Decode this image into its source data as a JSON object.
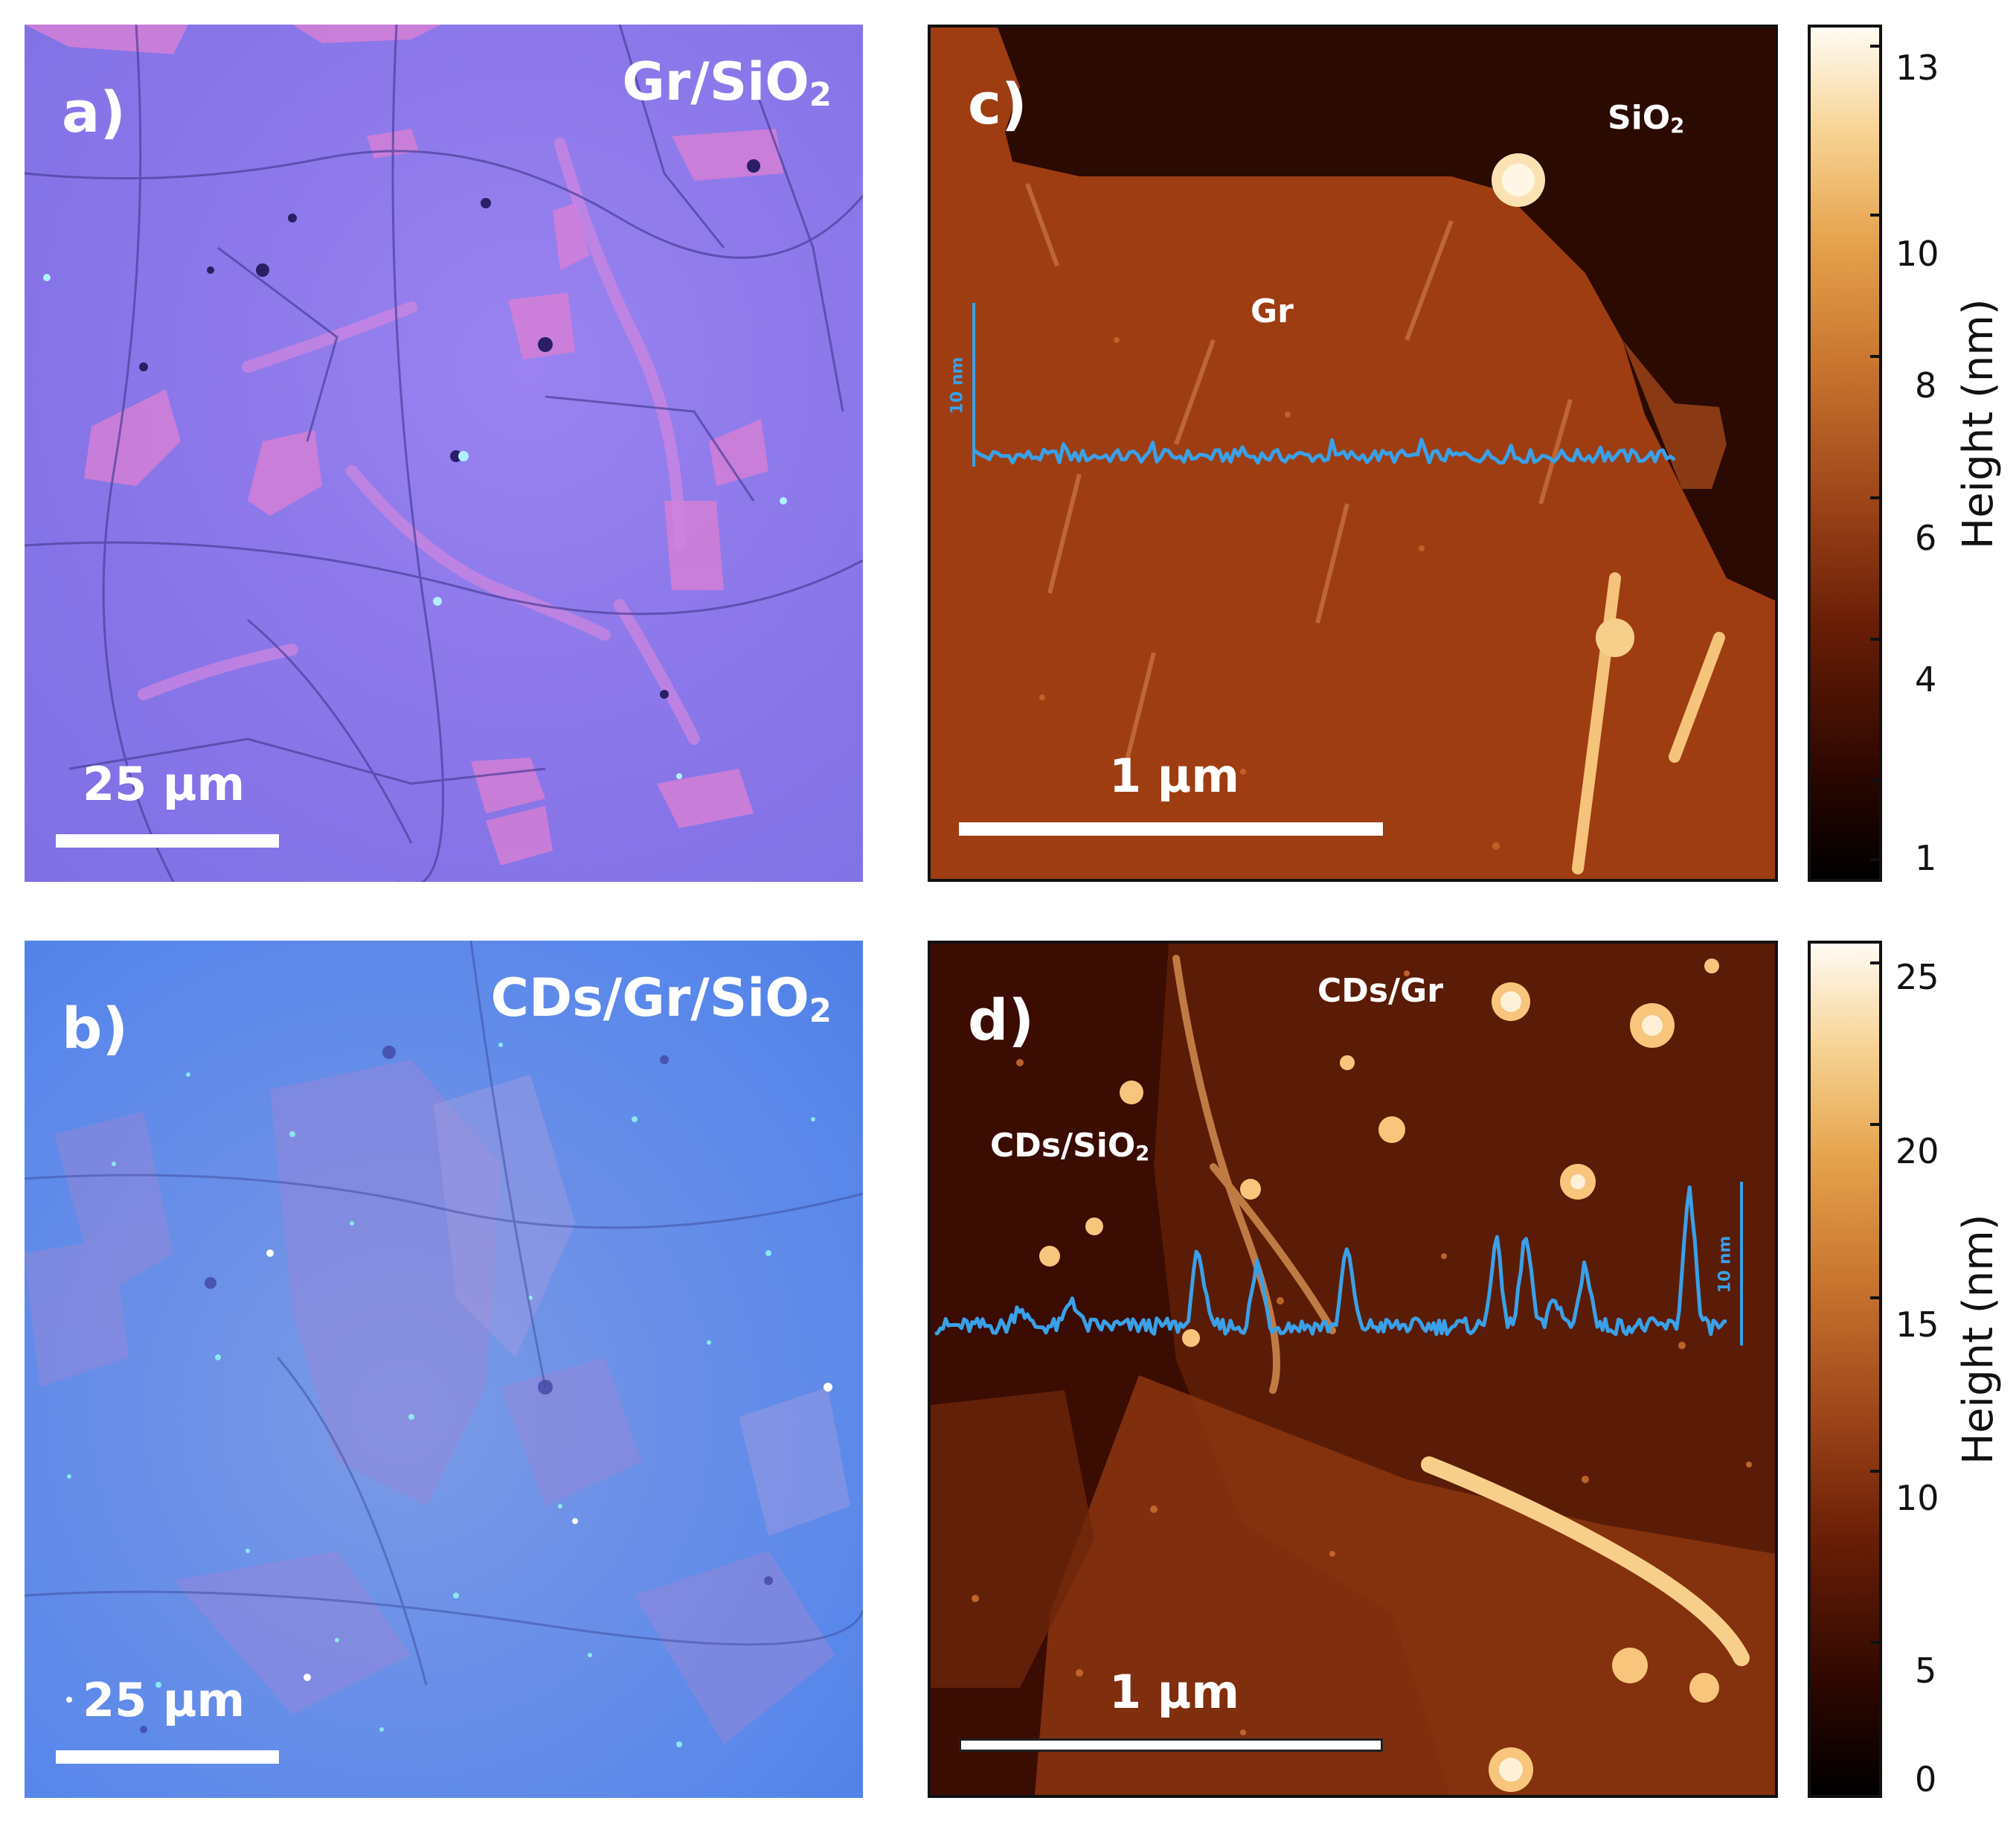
{
  "panels": {
    "a": {
      "label": "a)",
      "overlay": "Gr/SiO",
      "overlay_sub": "2",
      "scalebar": "25 µm"
    },
    "b": {
      "label": "b)",
      "overlay": "CDs/Gr/SiO",
      "overlay_sub": "2",
      "scalebar": "25 µm"
    },
    "c": {
      "label": "c)",
      "region_sio2": "SiO",
      "region_sio2_sub": "2",
      "region_gr": "Gr",
      "profile_scale": "10 nm",
      "scalebar": "1 µm"
    },
    "d": {
      "label": "d)",
      "region_cds_gr": "CDs/Gr",
      "region_cds_sio2": "CDs/SiO",
      "region_cds_sio2_sub": "2",
      "profile_scale": "10 nm",
      "scalebar": "1 µm"
    }
  },
  "colorbars": {
    "c": {
      "title": "Height (nm)",
      "ticks": [
        "1",
        "4",
        "6",
        "8",
        "10",
        "13"
      ]
    },
    "d": {
      "title": "Height (nm)",
      "ticks": [
        "0",
        "5",
        "10",
        "15",
        "20",
        "25"
      ]
    }
  },
  "colors": {
    "profile_line": "#3aa0e8",
    "afm_dark": "#2b0a02",
    "afm_mid": "#9e3d12",
    "optical_purple": "#8c78ea",
    "optical_blue": "#5a88ea"
  }
}
